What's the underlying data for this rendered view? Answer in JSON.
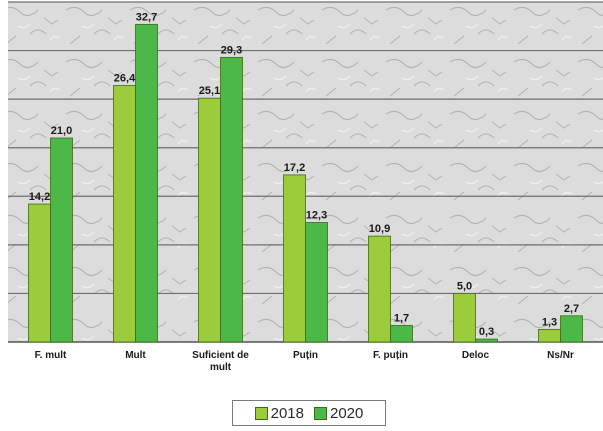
{
  "chart_data": {
    "type": "bar",
    "categories": [
      "F. mult",
      "Mult",
      "Suficient de mult",
      "Puțin",
      "F. puțin",
      "Deloc",
      "Ns/Nr"
    ],
    "category_lines": [
      [
        "F. mult"
      ],
      [
        "Mult"
      ],
      [
        "Suficient de",
        "mult"
      ],
      [
        "Puțin"
      ],
      [
        "F. puțin"
      ],
      [
        "Deloc"
      ],
      [
        "Ns/Nr"
      ]
    ],
    "series": [
      {
        "name": "2018",
        "values": [
          14.2,
          26.4,
          25.1,
          17.2,
          10.9,
          5.0,
          1.3
        ],
        "labels": [
          "14,2",
          "26,4",
          "25,1",
          "17,2",
          "10,9",
          "5,0",
          "1,3"
        ],
        "color": "#9ccc3c"
      },
      {
        "name": "2020",
        "values": [
          21.0,
          32.7,
          29.3,
          12.3,
          1.7,
          0.3,
          2.7
        ],
        "labels": [
          "21,0",
          "32,7",
          "29,3",
          "12,3",
          "1,7",
          "0,3",
          "2,7"
        ],
        "color": "#4cb848"
      }
    ],
    "ylim": [
      0,
      35
    ],
    "grid": true,
    "legend_position": "bottom"
  }
}
